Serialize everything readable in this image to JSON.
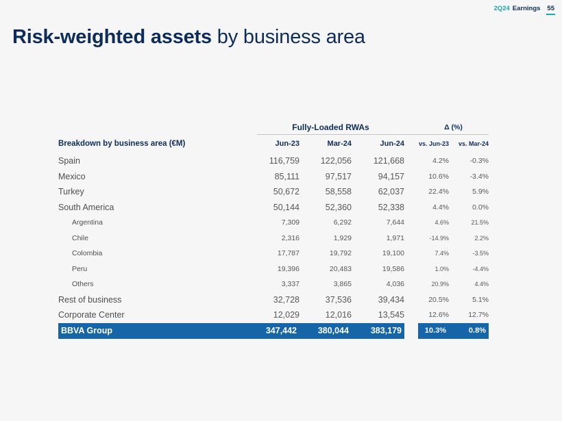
{
  "header": {
    "deck_tag": "2Q24",
    "deck_title": "Earnings",
    "page_number": "55"
  },
  "title": {
    "bold": "Risk-weighted assets",
    "regular": " by business area"
  },
  "table": {
    "corner_label": "Breakdown by business area (€M)",
    "group_headers": {
      "rwas": "Fully-Loaded RWAs",
      "delta": "Δ (%)"
    },
    "columns": [
      "Jun-23",
      "Mar-24",
      "Jun-24",
      "vs. Jun-23",
      "vs. Mar-24"
    ],
    "rows": [
      {
        "label": "Spain",
        "level": "main",
        "values": [
          "116,759",
          "122,056",
          "121,668"
        ],
        "deltas": [
          "4.2%",
          "-0.3%"
        ]
      },
      {
        "label": "Mexico",
        "level": "main",
        "values": [
          "85,111",
          "97,517",
          "94,157"
        ],
        "deltas": [
          "10.6%",
          "-3.4%"
        ]
      },
      {
        "label": "Turkey",
        "level": "main",
        "values": [
          "50,672",
          "58,558",
          "62,037"
        ],
        "deltas": [
          "22.4%",
          "5.9%"
        ]
      },
      {
        "label": "South America",
        "level": "main",
        "values": [
          "50,144",
          "52,360",
          "52,338"
        ],
        "deltas": [
          "4.4%",
          "0.0%"
        ]
      },
      {
        "label": "Argentina",
        "level": "sub",
        "values": [
          "7,309",
          "6,292",
          "7,644"
        ],
        "deltas": [
          "4.6%",
          "21.5%"
        ]
      },
      {
        "label": "Chile",
        "level": "sub",
        "values": [
          "2,316",
          "1,929",
          "1,971"
        ],
        "deltas": [
          "-14.9%",
          "2.2%"
        ]
      },
      {
        "label": "Colombia",
        "level": "sub",
        "values": [
          "17,787",
          "19,792",
          "19,100"
        ],
        "deltas": [
          "7.4%",
          "-3.5%"
        ]
      },
      {
        "label": "Peru",
        "level": "sub",
        "values": [
          "19,396",
          "20,483",
          "19,586"
        ],
        "deltas": [
          "1.0%",
          "-4.4%"
        ]
      },
      {
        "label": "Others",
        "level": "sub",
        "values": [
          "3,337",
          "3,865",
          "4,036"
        ],
        "deltas": [
          "20.9%",
          "4.4%"
        ]
      },
      {
        "label": "Rest of business",
        "level": "main",
        "values": [
          "32,728",
          "37,536",
          "39,434"
        ],
        "deltas": [
          "20.5%",
          "5.1%"
        ]
      },
      {
        "label": "Corporate Center",
        "level": "main",
        "values": [
          "12,029",
          "12,016",
          "13,545"
        ],
        "deltas": [
          "12.6%",
          "12.7%"
        ]
      },
      {
        "label": "BBVA Group",
        "level": "total",
        "values": [
          "347,442",
          "380,044",
          "383,179"
        ],
        "deltas": [
          "10.3%",
          "0.8%"
        ]
      }
    ]
  },
  "colors": {
    "navy": "#0e2c5a",
    "teal": "#18a9b0",
    "band": "#1565a8",
    "valgray": "#575757"
  }
}
